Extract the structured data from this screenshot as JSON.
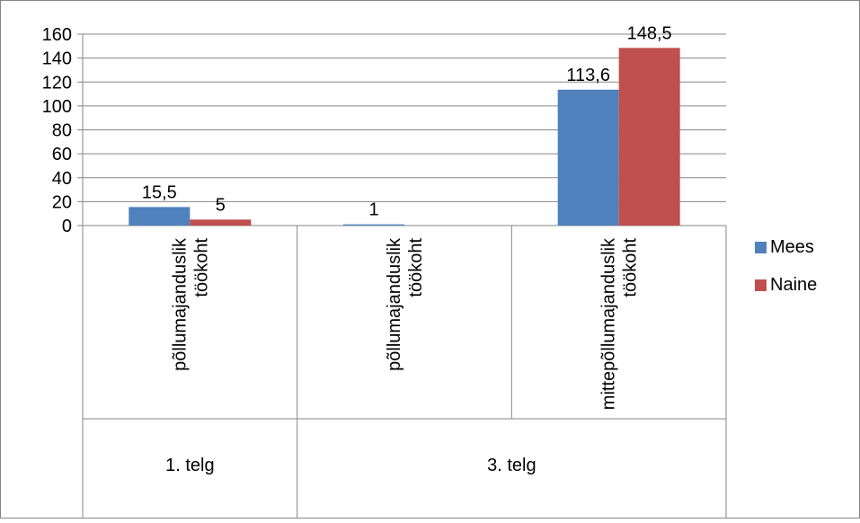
{
  "chart_data": {
    "type": "bar",
    "groups": [
      {
        "label": "1. telg",
        "categories": [
          "põllumajanduslik töökoht"
        ]
      },
      {
        "label": "3. telg",
        "categories": [
          "põllumajanduslik töökoht",
          "mittepõllumajanduslik töökoht"
        ]
      }
    ],
    "categories": [
      [
        "põllumajanduslik",
        "töökoht"
      ],
      [
        "põllumajanduslik",
        "töökoht"
      ],
      [
        "mittepõllumajanduslik",
        "töökoht"
      ]
    ],
    "series": [
      {
        "name": "Mees",
        "color": "#4F81BD",
        "values": [
          15.5,
          1,
          113.6
        ],
        "labels": [
          "15,5",
          "1",
          "113,6"
        ]
      },
      {
        "name": "Naine",
        "color": "#C0504D",
        "values": [
          5,
          0,
          148.5
        ],
        "labels": [
          "5",
          "",
          "148,5"
        ]
      }
    ],
    "yticks": [
      "0",
      "20",
      "40",
      "60",
      "80",
      "100",
      "120",
      "140",
      "160"
    ],
    "ylim": [
      0,
      160
    ],
    "grid": true,
    "legend_position": "right"
  }
}
